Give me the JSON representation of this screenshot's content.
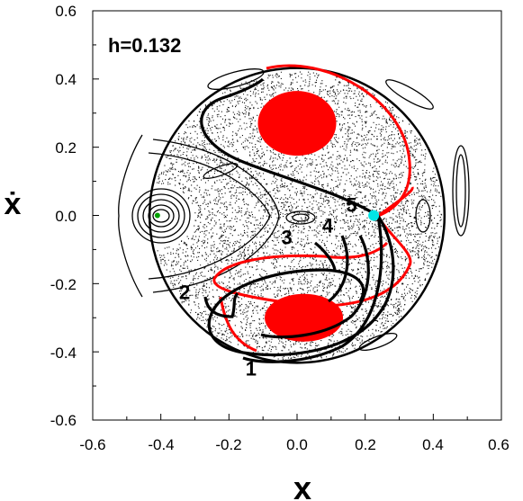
{
  "chart_data": {
    "type": "scatter",
    "title": "",
    "xlabel": "x",
    "ylabel": "ẋ",
    "xlim": [
      -0.6,
      0.6
    ],
    "ylim": [
      -0.6,
      0.6
    ],
    "xticks": [
      "-0.6",
      "-0.4",
      "-0.2",
      "0.0",
      "0.2",
      "0.4",
      "0.6"
    ],
    "yticks": [
      "0.6",
      "0.4",
      "0.2",
      "0.0",
      "-0.2",
      "-0.4",
      "-0.6"
    ],
    "grid": false,
    "energy_label": "h=0.132",
    "boundary_radius": 0.433,
    "islands": [
      {
        "name": "upper-island",
        "color": "#ff0000",
        "center": [
          0.0,
          0.27
        ],
        "rx": 0.115,
        "ry": 0.095
      },
      {
        "name": "lower-island",
        "color": "#ff0000",
        "center": [
          0.02,
          -0.3
        ],
        "rx": 0.115,
        "ry": 0.07
      }
    ],
    "periodic_point": {
      "x": 0.225,
      "y": 0.0,
      "color": "#00e5e5"
    },
    "left_center_point": {
      "x": -0.41,
      "y": 0.0,
      "color": "#00a000"
    },
    "labels": [
      {
        "text": "1",
        "x": -0.135,
        "y": -0.47
      },
      {
        "text": "2",
        "x": -0.33,
        "y": -0.245
      },
      {
        "text": "3",
        "x": -0.03,
        "y": -0.085
      },
      {
        "text": "4",
        "x": 0.09,
        "y": -0.05
      },
      {
        "text": "5",
        "x": 0.16,
        "y": 0.01
      }
    ]
  }
}
